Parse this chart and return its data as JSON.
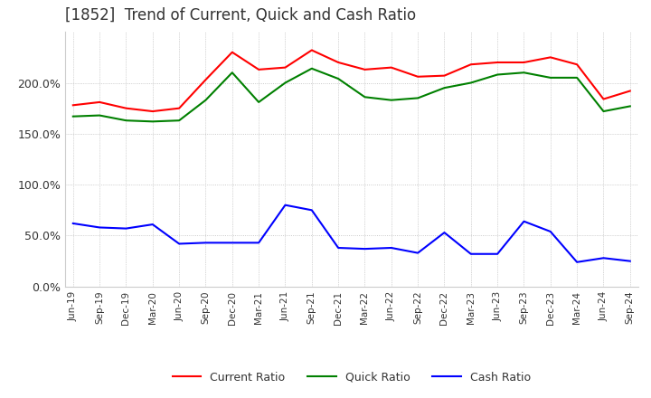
{
  "title": "[1852]  Trend of Current, Quick and Cash Ratio",
  "title_color": "#333333",
  "title_fontsize": 12,
  "background_color": "#ffffff",
  "plot_background_color": "#ffffff",
  "grid_color": "#bbbbbb",
  "labels": [
    "Jun-19",
    "Sep-19",
    "Dec-19",
    "Mar-20",
    "Jun-20",
    "Sep-20",
    "Dec-20",
    "Mar-21",
    "Jun-21",
    "Sep-21",
    "Dec-21",
    "Mar-22",
    "Jun-22",
    "Sep-22",
    "Dec-22",
    "Mar-23",
    "Jun-23",
    "Sep-23",
    "Dec-23",
    "Mar-24",
    "Jun-24",
    "Sep-24"
  ],
  "current_ratio": [
    178,
    181,
    175,
    172,
    175,
    203,
    230,
    213,
    215,
    232,
    220,
    213,
    215,
    206,
    207,
    218,
    220,
    220,
    225,
    218,
    184,
    192
  ],
  "quick_ratio": [
    167,
    168,
    163,
    162,
    163,
    183,
    210,
    181,
    200,
    214,
    204,
    186,
    183,
    185,
    195,
    200,
    208,
    210,
    205,
    205,
    172,
    177
  ],
  "cash_ratio": [
    62,
    58,
    57,
    61,
    42,
    43,
    43,
    43,
    80,
    75,
    38,
    37,
    38,
    33,
    53,
    32,
    32,
    64,
    54,
    24,
    28,
    25
  ],
  "current_color": "#ff0000",
  "quick_color": "#008000",
  "cash_color": "#0000ff",
  "ylim": [
    0,
    250
  ],
  "yticks": [
    0,
    50,
    100,
    150,
    200
  ],
  "legend_labels": [
    "Current Ratio",
    "Quick Ratio",
    "Cash Ratio"
  ]
}
